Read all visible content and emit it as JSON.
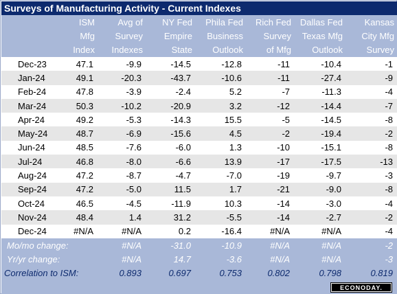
{
  "title": "Surveys of Manufacturing Activity - Current Indexes",
  "headers": [
    {
      "lines": [
        "",
        "",
        ""
      ]
    },
    {
      "lines": [
        "ISM",
        "Mfg",
        "Index"
      ]
    },
    {
      "lines": [
        "Avg of",
        "Survey",
        "Indexes"
      ]
    },
    {
      "lines": [
        "NY Fed",
        "Empire",
        "State"
      ]
    },
    {
      "lines": [
        "Phila Fed",
        "Business",
        "Outlook"
      ]
    },
    {
      "lines": [
        "Rich Fed",
        "Survey",
        "of Mfg"
      ]
    },
    {
      "lines": [
        "Dallas Fed",
        "Texas Mfg",
        "Outlook"
      ]
    },
    {
      "lines": [
        "Kansas",
        "City Mfg",
        "Survey"
      ]
    }
  ],
  "rows": [
    {
      "month": "Dec-23",
      "values": [
        "47.1",
        "-9.9",
        "-14.5",
        "-12.8",
        "-11",
        "-10.4",
        "-1"
      ]
    },
    {
      "month": "Jan-24",
      "values": [
        "49.1",
        "-20.3",
        "-43.7",
        "-10.6",
        "-11",
        "-27.4",
        "-9"
      ]
    },
    {
      "month": "Feb-24",
      "values": [
        "47.8",
        "-3.9",
        "-2.4",
        "5.2",
        "-7",
        "-11.3",
        "-4"
      ]
    },
    {
      "month": "Mar-24",
      "values": [
        "50.3",
        "-10.2",
        "-20.9",
        "3.2",
        "-12",
        "-14.4",
        "-7"
      ]
    },
    {
      "month": "Apr-24",
      "values": [
        "49.2",
        "-5.3",
        "-14.3",
        "15.5",
        "-5",
        "-14.5",
        "-8"
      ]
    },
    {
      "month": "May-24",
      "values": [
        "48.7",
        "-6.9",
        "-15.6",
        "4.5",
        "-2",
        "-19.4",
        "-2"
      ]
    },
    {
      "month": "Jun-24",
      "values": [
        "48.5",
        "-7.6",
        "-6.0",
        "1.3",
        "-10",
        "-15.1",
        "-8"
      ]
    },
    {
      "month": "Jul-24",
      "values": [
        "46.8",
        "-8.0",
        "-6.6",
        "13.9",
        "-17",
        "-17.5",
        "-13"
      ]
    },
    {
      "month": "Aug-24",
      "values": [
        "47.2",
        "-8.7",
        "-4.7",
        "-7.0",
        "-19",
        "-9.7",
        "-3"
      ]
    },
    {
      "month": "Sep-24",
      "values": [
        "47.2",
        "-5.0",
        "11.5",
        "1.7",
        "-21",
        "-9.0",
        "-8"
      ]
    },
    {
      "month": "Oct-24",
      "values": [
        "46.5",
        "-4.5",
        "-11.9",
        "10.3",
        "-14",
        "-3.0",
        "-4"
      ]
    },
    {
      "month": "Nov-24",
      "values": [
        "48.4",
        "1.4",
        "31.2",
        "-5.5",
        "-14",
        "-2.7",
        "-2"
      ]
    },
    {
      "month": "Dec-24",
      "values": [
        "#N/A",
        "#N/A",
        "0.2",
        "-16.4",
        "#N/A",
        "#N/A",
        "-4"
      ]
    }
  ],
  "mo_change": {
    "label": "Mo/mo change:",
    "values": [
      "",
      "#N/A",
      "-31.0",
      "-10.9",
      "#N/A",
      "#N/A",
      "-2"
    ]
  },
  "yr_change": {
    "label": "Yr/yr change:",
    "values": [
      "",
      "#N/A",
      "14.7",
      "-3.6",
      "#N/A",
      "#N/A",
      "-3"
    ]
  },
  "correlation": {
    "label": "Correlation to ISM:",
    "values": [
      "",
      "0.893",
      "0.697",
      "0.753",
      "0.802",
      "0.798",
      "0.819"
    ]
  },
  "logo": "ECONODAY."
}
